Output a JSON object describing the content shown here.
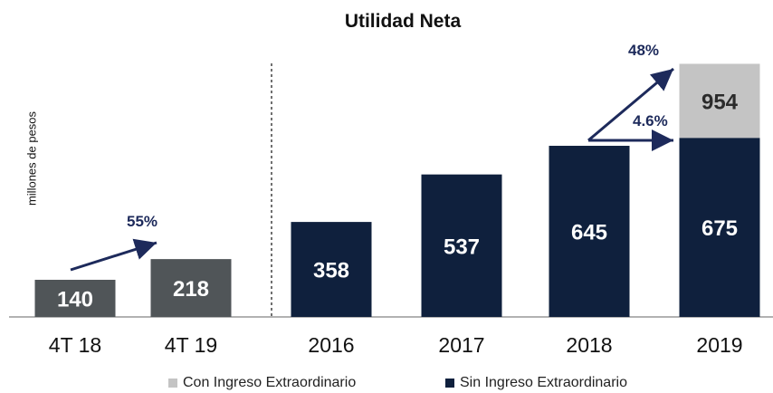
{
  "chart_data": {
    "type": "bar",
    "title": "Utilidad Neta",
    "ylabel": "millones de pesos",
    "categories": [
      "4T 18",
      "4T 19",
      "2016",
      "2017",
      "2018",
      "2019"
    ],
    "series": [
      {
        "name": "Sin Ingreso Extraordinario",
        "values": [
          140,
          218,
          358,
          537,
          645,
          675
        ]
      },
      {
        "name": "Con Ingreso Extraordinario",
        "values": [
          null,
          null,
          null,
          null,
          null,
          954
        ]
      }
    ],
    "data_labels": [
      "140",
      "218",
      "358",
      "537",
      "645",
      "675",
      "954"
    ],
    "annotations": [
      "55%",
      "48%",
      "4.6%"
    ],
    "colors": {
      "quarter_bars": "#505558",
      "annual_bars": "#0f203d",
      "extraordinary": "#c4c4c4",
      "arrows": "#1d2a5b",
      "divider": "#111111"
    },
    "legend": {
      "placement": "bottom",
      "items": [
        {
          "label": "Con Ingreso Extraordinario",
          "color": "#c4c4c4"
        },
        {
          "label": "Sin Ingreso Extraordinario",
          "color": "#0f203d"
        }
      ]
    }
  }
}
